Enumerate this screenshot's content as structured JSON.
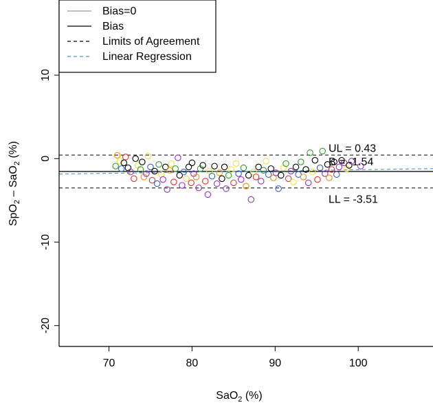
{
  "chart_data": {
    "type": "scatter",
    "title": "",
    "xlabel": {
      "main": "SaO",
      "sub": "2",
      "unit": " (%)"
    },
    "ylabel": {
      "part1": "SpO",
      "sub1": "2",
      "mid": " – SaO",
      "sub2": "2",
      "unit": " (%)"
    },
    "xlim": [
      64,
      109
    ],
    "ylim": [
      -22.5,
      19
    ],
    "x_ticks": [
      70,
      80,
      90,
      100
    ],
    "y_ticks": [
      -20,
      -10,
      0,
      10
    ],
    "x_tick_labels": [
      "70",
      "80",
      "90",
      "100"
    ],
    "y_tick_labels": [
      "-20",
      "-10",
      "0",
      "10"
    ],
    "grid": false,
    "legend_position": "top-left",
    "legend": [
      {
        "label": "Bias=0",
        "color": "#aaaaaa",
        "dash": "solid"
      },
      {
        "label": "Bias",
        "color": "#000000",
        "dash": "solid"
      },
      {
        "label": "Limits of Agreement",
        "color": "#000000",
        "dash": "dashed"
      },
      {
        "label": "Linear Regression",
        "color": "#4a90d9",
        "dash": "dashed"
      }
    ],
    "reference_lines": {
      "bias_zero": -1.54,
      "bias": -1.54,
      "upper_limit": 0.43,
      "lower_limit": -3.51
    },
    "regression": {
      "x": [
        64,
        109
      ],
      "y": [
        -1.85,
        -1.2
      ]
    },
    "annotations": [
      {
        "text": "UL = 0.43",
        "x": 97.5,
        "y": 1.2
      },
      {
        "text": "B = -1.54",
        "x": 97.5,
        "y": -0.4
      },
      {
        "text": "LL = -3.51",
        "x": 97.5,
        "y": -4.9
      }
    ],
    "point_colors": [
      "#000000",
      "#9b30d0",
      "#2ca02c",
      "#f0e040",
      "#e83030",
      "#ff8c00",
      "#3060d0"
    ],
    "points": [
      {
        "x": 70.8,
        "y": -0.9,
        "c": 2
      },
      {
        "x": 71.0,
        "y": 0.4,
        "c": 5
      },
      {
        "x": 71.3,
        "y": -0.3,
        "c": 3
      },
      {
        "x": 71.5,
        "y": -1.2,
        "c": 6
      },
      {
        "x": 71.8,
        "y": -0.5,
        "c": 0
      },
      {
        "x": 72.0,
        "y": 0.2,
        "c": 4
      },
      {
        "x": 72.3,
        "y": -1.1,
        "c": 0
      },
      {
        "x": 72.6,
        "y": -1.6,
        "c": 1
      },
      {
        "x": 73.0,
        "y": -2.4,
        "c": 4
      },
      {
        "x": 73.2,
        "y": 0.0,
        "c": 0
      },
      {
        "x": 73.5,
        "y": -0.8,
        "c": 3
      },
      {
        "x": 73.8,
        "y": -1.3,
        "c": 2
      },
      {
        "x": 74.0,
        "y": -0.4,
        "c": 0
      },
      {
        "x": 74.2,
        "y": -2.2,
        "c": 5
      },
      {
        "x": 74.5,
        "y": -1.8,
        "c": 1
      },
      {
        "x": 74.7,
        "y": 0.3,
        "c": 3
      },
      {
        "x": 75.0,
        "y": -1.0,
        "c": 6
      },
      {
        "x": 75.2,
        "y": -2.6,
        "c": 4
      },
      {
        "x": 75.5,
        "y": -1.5,
        "c": 0
      },
      {
        "x": 75.8,
        "y": -3.0,
        "c": 6
      },
      {
        "x": 76.0,
        "y": -0.7,
        "c": 2
      },
      {
        "x": 76.3,
        "y": -1.9,
        "c": 3
      },
      {
        "x": 76.5,
        "y": -2.5,
        "c": 1
      },
      {
        "x": 76.8,
        "y": -1.0,
        "c": 0
      },
      {
        "x": 77.0,
        "y": -3.7,
        "c": 1
      },
      {
        "x": 77.3,
        "y": -1.4,
        "c": 5
      },
      {
        "x": 77.5,
        "y": -0.6,
        "c": 3
      },
      {
        "x": 77.8,
        "y": -2.8,
        "c": 4
      },
      {
        "x": 78.0,
        "y": -1.2,
        "c": 2
      },
      {
        "x": 78.3,
        "y": 0.1,
        "c": 1
      },
      {
        "x": 78.5,
        "y": -2.0,
        "c": 0
      },
      {
        "x": 78.8,
        "y": -3.2,
        "c": 1
      },
      {
        "x": 79.0,
        "y": -1.6,
        "c": 6
      },
      {
        "x": 79.3,
        "y": -2.4,
        "c": 3
      },
      {
        "x": 79.6,
        "y": -1.0,
        "c": 0
      },
      {
        "x": 79.9,
        "y": -2.9,
        "c": 4
      },
      {
        "x": 80.0,
        "y": -0.5,
        "c": 0
      },
      {
        "x": 80.2,
        "y": -1.8,
        "c": 1
      },
      {
        "x": 80.5,
        "y": -2.2,
        "c": 5
      },
      {
        "x": 80.8,
        "y": -3.5,
        "c": 1
      },
      {
        "x": 81.0,
        "y": -1.2,
        "c": 2
      },
      {
        "x": 81.3,
        "y": -0.8,
        "c": 0
      },
      {
        "x": 81.6,
        "y": -2.7,
        "c": 4
      },
      {
        "x": 81.9,
        "y": -4.3,
        "c": 1
      },
      {
        "x": 82.1,
        "y": -1.5,
        "c": 3
      },
      {
        "x": 82.4,
        "y": -2.1,
        "c": 6
      },
      {
        "x": 82.7,
        "y": -0.9,
        "c": 0
      },
      {
        "x": 83.0,
        "y": -3.0,
        "c": 1
      },
      {
        "x": 83.3,
        "y": -1.7,
        "c": 5
      },
      {
        "x": 83.6,
        "y": -2.4,
        "c": 0
      },
      {
        "x": 83.9,
        "y": -1.0,
        "c": 0
      },
      {
        "x": 84.1,
        "y": -3.6,
        "c": 1
      },
      {
        "x": 84.4,
        "y": -2.0,
        "c": 2
      },
      {
        "x": 84.7,
        "y": -1.3,
        "c": 3
      },
      {
        "x": 85.0,
        "y": -2.9,
        "c": 4
      },
      {
        "x": 85.3,
        "y": -0.6,
        "c": 3
      },
      {
        "x": 85.6,
        "y": -1.8,
        "c": 6
      },
      {
        "x": 85.9,
        "y": -2.5,
        "c": 1
      },
      {
        "x": 86.2,
        "y": -1.1,
        "c": 2
      },
      {
        "x": 86.5,
        "y": -3.3,
        "c": 5
      },
      {
        "x": 86.8,
        "y": -2.0,
        "c": 0
      },
      {
        "x": 87.1,
        "y": -4.9,
        "c": 1
      },
      {
        "x": 87.4,
        "y": -1.6,
        "c": 3
      },
      {
        "x": 87.7,
        "y": -2.2,
        "c": 4
      },
      {
        "x": 88.0,
        "y": -1.0,
        "c": 0
      },
      {
        "x": 88.3,
        "y": -2.7,
        "c": 1
      },
      {
        "x": 88.6,
        "y": -1.4,
        "c": 2
      },
      {
        "x": 88.9,
        "y": -0.3,
        "c": 3
      },
      {
        "x": 89.2,
        "y": -1.9,
        "c": 6
      },
      {
        "x": 89.5,
        "y": -1.2,
        "c": 0
      },
      {
        "x": 89.8,
        "y": -2.3,
        "c": 5
      },
      {
        "x": 90.1,
        "y": -1.7,
        "c": 1
      },
      {
        "x": 90.4,
        "y": -3.6,
        "c": 6
      },
      {
        "x": 90.7,
        "y": -2.0,
        "c": 0
      },
      {
        "x": 91.0,
        "y": -1.1,
        "c": 3
      },
      {
        "x": 91.3,
        "y": -0.6,
        "c": 2
      },
      {
        "x": 91.6,
        "y": -2.4,
        "c": 4
      },
      {
        "x": 91.9,
        "y": -1.5,
        "c": 1
      },
      {
        "x": 92.2,
        "y": -2.8,
        "c": 3
      },
      {
        "x": 92.5,
        "y": -1.0,
        "c": 0
      },
      {
        "x": 92.8,
        "y": -1.9,
        "c": 6
      },
      {
        "x": 93.1,
        "y": -0.4,
        "c": 2
      },
      {
        "x": 93.4,
        "y": -2.2,
        "c": 5
      },
      {
        "x": 93.7,
        "y": -1.3,
        "c": 0
      },
      {
        "x": 94.0,
        "y": -2.9,
        "c": 1
      },
      {
        "x": 94.2,
        "y": 0.7,
        "c": 2
      },
      {
        "x": 94.5,
        "y": -1.6,
        "c": 3
      },
      {
        "x": 94.8,
        "y": -0.2,
        "c": 0
      },
      {
        "x": 95.1,
        "y": -2.5,
        "c": 4
      },
      {
        "x": 95.4,
        "y": -1.1,
        "c": 6
      },
      {
        "x": 95.7,
        "y": 0.9,
        "c": 2
      },
      {
        "x": 96.0,
        "y": -1.8,
        "c": 1
      },
      {
        "x": 96.3,
        "y": -0.7,
        "c": 0
      },
      {
        "x": 96.5,
        "y": -2.3,
        "c": 5
      },
      {
        "x": 96.8,
        "y": -1.3,
        "c": 4
      },
      {
        "x": 97.1,
        "y": -0.4,
        "c": 0
      },
      {
        "x": 97.4,
        "y": -1.9,
        "c": 6
      },
      {
        "x": 97.7,
        "y": -1.0,
        "c": 1
      },
      {
        "x": 98.0,
        "y": -0.2,
        "c": 0
      },
      {
        "x": 98.3,
        "y": -0.5,
        "c": 1
      },
      {
        "x": 98.6,
        "y": -1.2,
        "c": 3
      },
      {
        "x": 98.9,
        "y": -0.8,
        "c": 0
      },
      {
        "x": 99.2,
        "y": -0.3,
        "c": 1
      },
      {
        "x": 100.3,
        "y": -0.9,
        "c": 1
      }
    ]
  }
}
